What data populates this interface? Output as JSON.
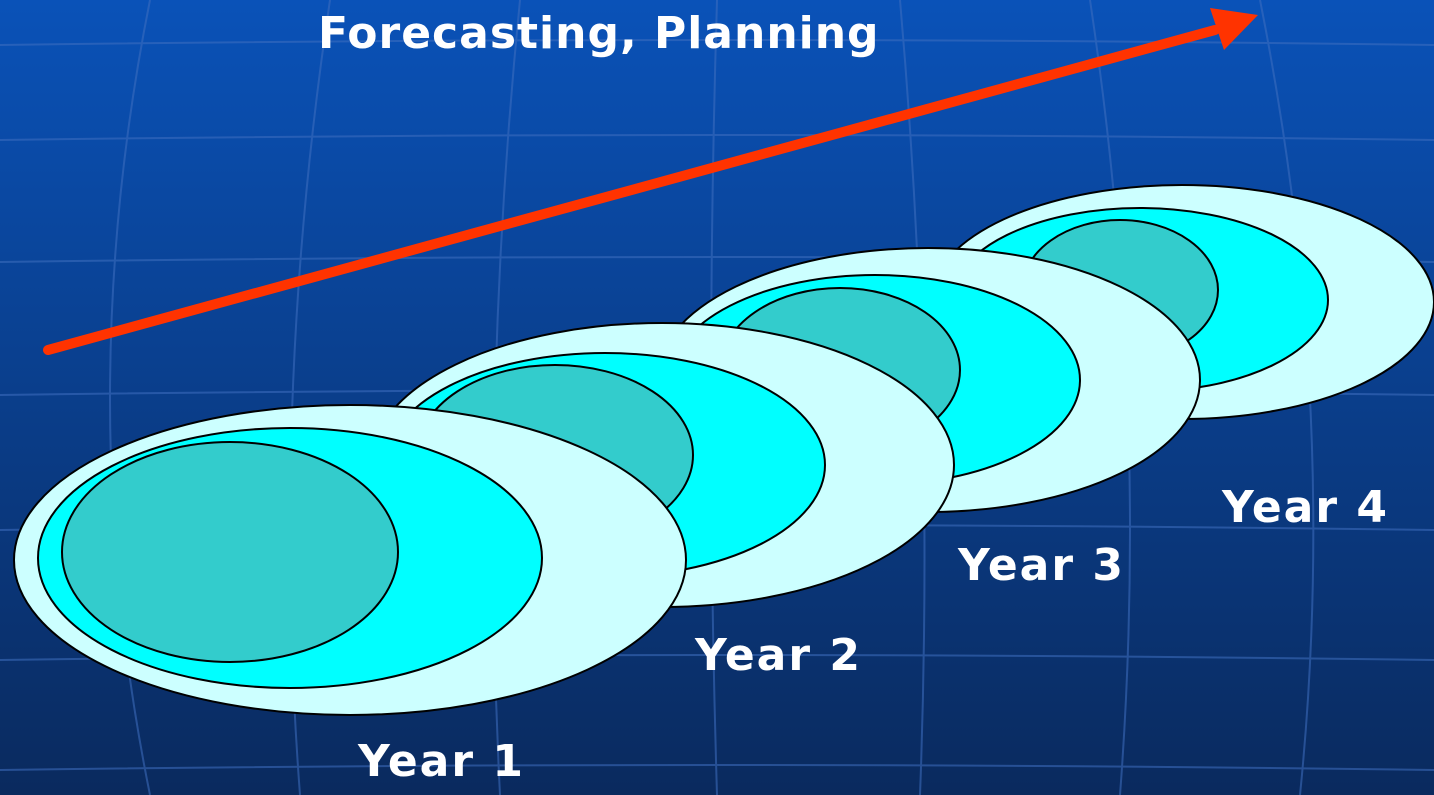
{
  "title": "Forecasting, Planning",
  "years": [
    {
      "label": "Year 1"
    },
    {
      "label": "Year 2"
    },
    {
      "label": "Year 3"
    },
    {
      "label": "Year 4"
    }
  ],
  "colors": {
    "background_top": "#0a52b8",
    "background_bottom": "#0a2a5e",
    "arrow": "#ff3300",
    "outer_ellipse": "#ccffff",
    "middle_ellipse": "#00ffff",
    "inner_ellipse": "#33cccc",
    "outline": "#000000",
    "text": "#ffffff"
  },
  "icons": {
    "arrow": "trend-arrow-icon"
  }
}
